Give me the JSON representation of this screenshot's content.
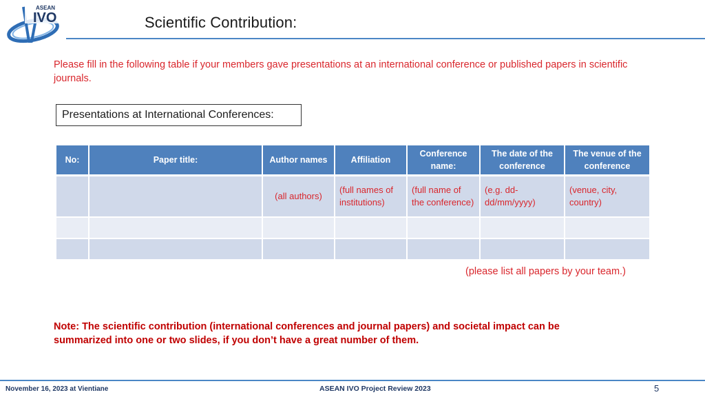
{
  "logo": {
    "top_text": "ASEAN",
    "main_text": "IVO"
  },
  "title": "Scientific Contribution:",
  "intro": "Please fill in the following table if your members gave presentations at an international conference or published papers in scientific journals.",
  "section_label": "Presentations at International Conferences:",
  "table": {
    "headers": [
      "No:",
      "Paper title:",
      "Author names",
      "Affiliation",
      "Conference name:",
      "The date of the conference",
      "The venue of the conference"
    ],
    "rows": [
      [
        "",
        "",
        "(all authors)",
        "(full names of institutions)",
        "(full name of the conference)",
        "(e.g. dd-dd/mm/yyyy)",
        "(venue, city, country)"
      ],
      [
        "",
        "",
        "",
        "",
        "",
        "",
        ""
      ],
      [
        "",
        "",
        "",
        "",
        "",
        "",
        ""
      ]
    ]
  },
  "list_note": "(please list all papers by your team.)",
  "note": "Note: The scientific contribution (international conferences and journal papers) and societal impact can be summarized into one or two slides, if you don’t have a great number of them.",
  "footer": {
    "date": "November 16, 2023 at Vientiane",
    "center": "ASEAN IVO Project Review 2023",
    "page": "5"
  },
  "colors": {
    "header_blue": "#4f81bd",
    "rule_blue": "#4a86c5",
    "red_text": "#d9262c",
    "row_dark": "#d0d9ea",
    "row_light": "#e9edf5"
  },
  "icons": [
    "asean-ivo-logo"
  ]
}
